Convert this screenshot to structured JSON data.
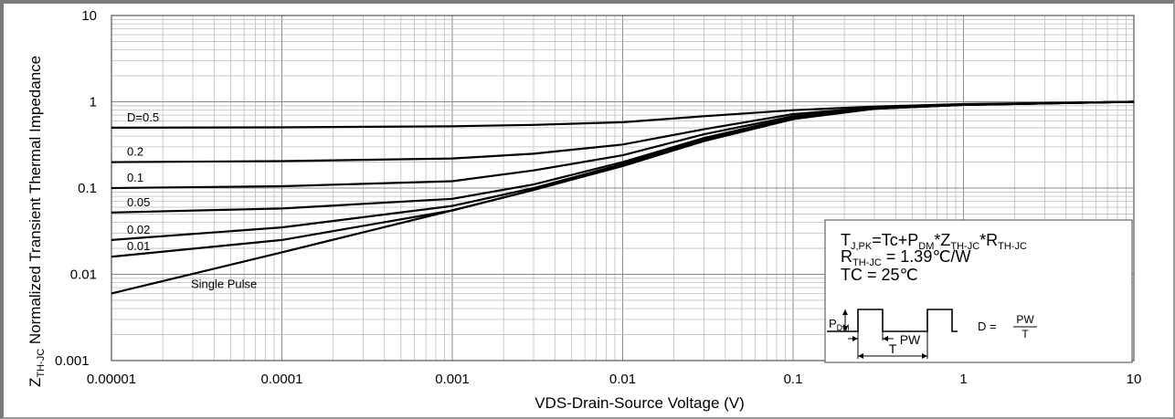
{
  "chart_data": {
    "type": "line",
    "xlabel": "VDS-Drain-Source Voltage (V)",
    "ylabel_prefix": "Z",
    "ylabel_sub": "TH-JC",
    "ylabel_rest": " Normalized Transient Thermal Impedance",
    "x_scale": "log",
    "y_scale": "log",
    "xlim": [
      1e-05,
      10
    ],
    "ylim": [
      0.001,
      10
    ],
    "x_ticks": [
      "0.00001",
      "0.0001",
      "0.001",
      "0.01",
      "0.1",
      "1",
      "10"
    ],
    "y_ticks": [
      "0.001",
      "0.01",
      "0.1",
      "1",
      "10"
    ],
    "grid": true,
    "series": [
      {
        "name": "D=0.5",
        "x": [
          1e-05,
          0.0001,
          0.001,
          0.003,
          0.01,
          0.03,
          0.1,
          0.3,
          1,
          10
        ],
        "y": [
          0.5,
          0.505,
          0.52,
          0.54,
          0.58,
          0.68,
          0.8,
          0.88,
          0.94,
          1.0
        ]
      },
      {
        "name": "0.2",
        "x": [
          1e-05,
          0.0001,
          0.001,
          0.003,
          0.01,
          0.03,
          0.1,
          0.3,
          1,
          10
        ],
        "y": [
          0.2,
          0.205,
          0.22,
          0.25,
          0.32,
          0.48,
          0.72,
          0.86,
          0.93,
          1.0
        ]
      },
      {
        "name": "0.1",
        "x": [
          1e-05,
          0.0001,
          0.001,
          0.003,
          0.01,
          0.03,
          0.1,
          0.3,
          1,
          10
        ],
        "y": [
          0.1,
          0.105,
          0.12,
          0.16,
          0.24,
          0.42,
          0.68,
          0.85,
          0.93,
          1.0
        ]
      },
      {
        "name": "0.05",
        "x": [
          1e-05,
          0.0001,
          0.001,
          0.003,
          0.01,
          0.03,
          0.1,
          0.3,
          1,
          10
        ],
        "y": [
          0.052,
          0.058,
          0.075,
          0.11,
          0.2,
          0.38,
          0.66,
          0.84,
          0.92,
          1.0
        ]
      },
      {
        "name": "0.02",
        "x": [
          1e-05,
          0.0001,
          0.001,
          0.003,
          0.01,
          0.03,
          0.1,
          0.3,
          1,
          10
        ],
        "y": [
          0.025,
          0.035,
          0.062,
          0.1,
          0.19,
          0.37,
          0.65,
          0.84,
          0.92,
          1.0
        ]
      },
      {
        "name": "0.01",
        "x": [
          1e-05,
          0.0001,
          0.001,
          0.003,
          0.01,
          0.03,
          0.1,
          0.3,
          1,
          10
        ],
        "y": [
          0.016,
          0.025,
          0.055,
          0.095,
          0.185,
          0.36,
          0.64,
          0.83,
          0.92,
          1.0
        ]
      },
      {
        "name": "Single Pulse",
        "x": [
          1e-05,
          0.0001,
          0.001,
          0.003,
          0.01,
          0.03,
          0.1,
          0.3,
          1,
          10
        ],
        "y": [
          0.006,
          0.018,
          0.055,
          0.095,
          0.18,
          0.35,
          0.63,
          0.83,
          0.92,
          1.0
        ]
      }
    ],
    "annotation": {
      "line1": {
        "a": "T",
        "a_sub": "J,PK",
        "b": "=Tc+P",
        "b_sub": "DM",
        "c": "*Z",
        "c_sub": "TH-JC",
        "d": "*R",
        "d_sub": "TH-JC"
      },
      "line2": {
        "a": "R",
        "a_sub": "TH-JC",
        "b": " = 1.39℃/W"
      },
      "line3": "TC = 25℃",
      "pdm": {
        "a": "P",
        "a_sub": "DM"
      },
      "pw_label": "PW",
      "t_label": "T",
      "d_eq": "D = ",
      "d_num": "PW",
      "d_den": "T"
    }
  }
}
